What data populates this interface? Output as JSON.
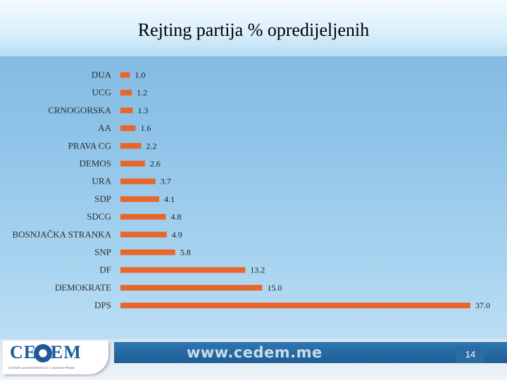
{
  "slide": {
    "title": "Rejting partija % opredijeljenih",
    "url": "www.cedem.me",
    "page_number": "14",
    "logo_text": "CEDEM",
    "logo_sub": "CENTAR ZA DEMOKRATIJU I LJUDSKA PRAVA"
  },
  "colors": {
    "bar": "#e8662a",
    "label": "#2f2f2f",
    "value": "#1e1e1e"
  },
  "chart_data": {
    "type": "bar",
    "orientation": "horizontal",
    "categories": [
      "DUA",
      "UCG",
      "CRNOGORSKA",
      "AA",
      "PRAVA CG",
      "DEMOS",
      "URA",
      "SDP",
      "SDCG",
      "BOSNJAČKA STRANKA",
      "SNP",
      "DF",
      "DEMOKRATE",
      "DPS"
    ],
    "values": [
      1.0,
      1.2,
      1.3,
      1.6,
      2.2,
      2.6,
      3.7,
      4.1,
      4.8,
      4.9,
      5.8,
      13.2,
      15.0,
      37.0
    ],
    "value_labels": [
      "1.0",
      "1.2",
      "1.3",
      "1.6",
      "2.2",
      "2.6",
      "3.7",
      "4.1",
      "4.8",
      "4.9",
      "5.8",
      "13.2",
      "15.0",
      "37.0"
    ],
    "xlim": [
      0,
      37
    ],
    "title": "Rejting partija % opredijeljenih",
    "grid": false,
    "legend": "none"
  }
}
